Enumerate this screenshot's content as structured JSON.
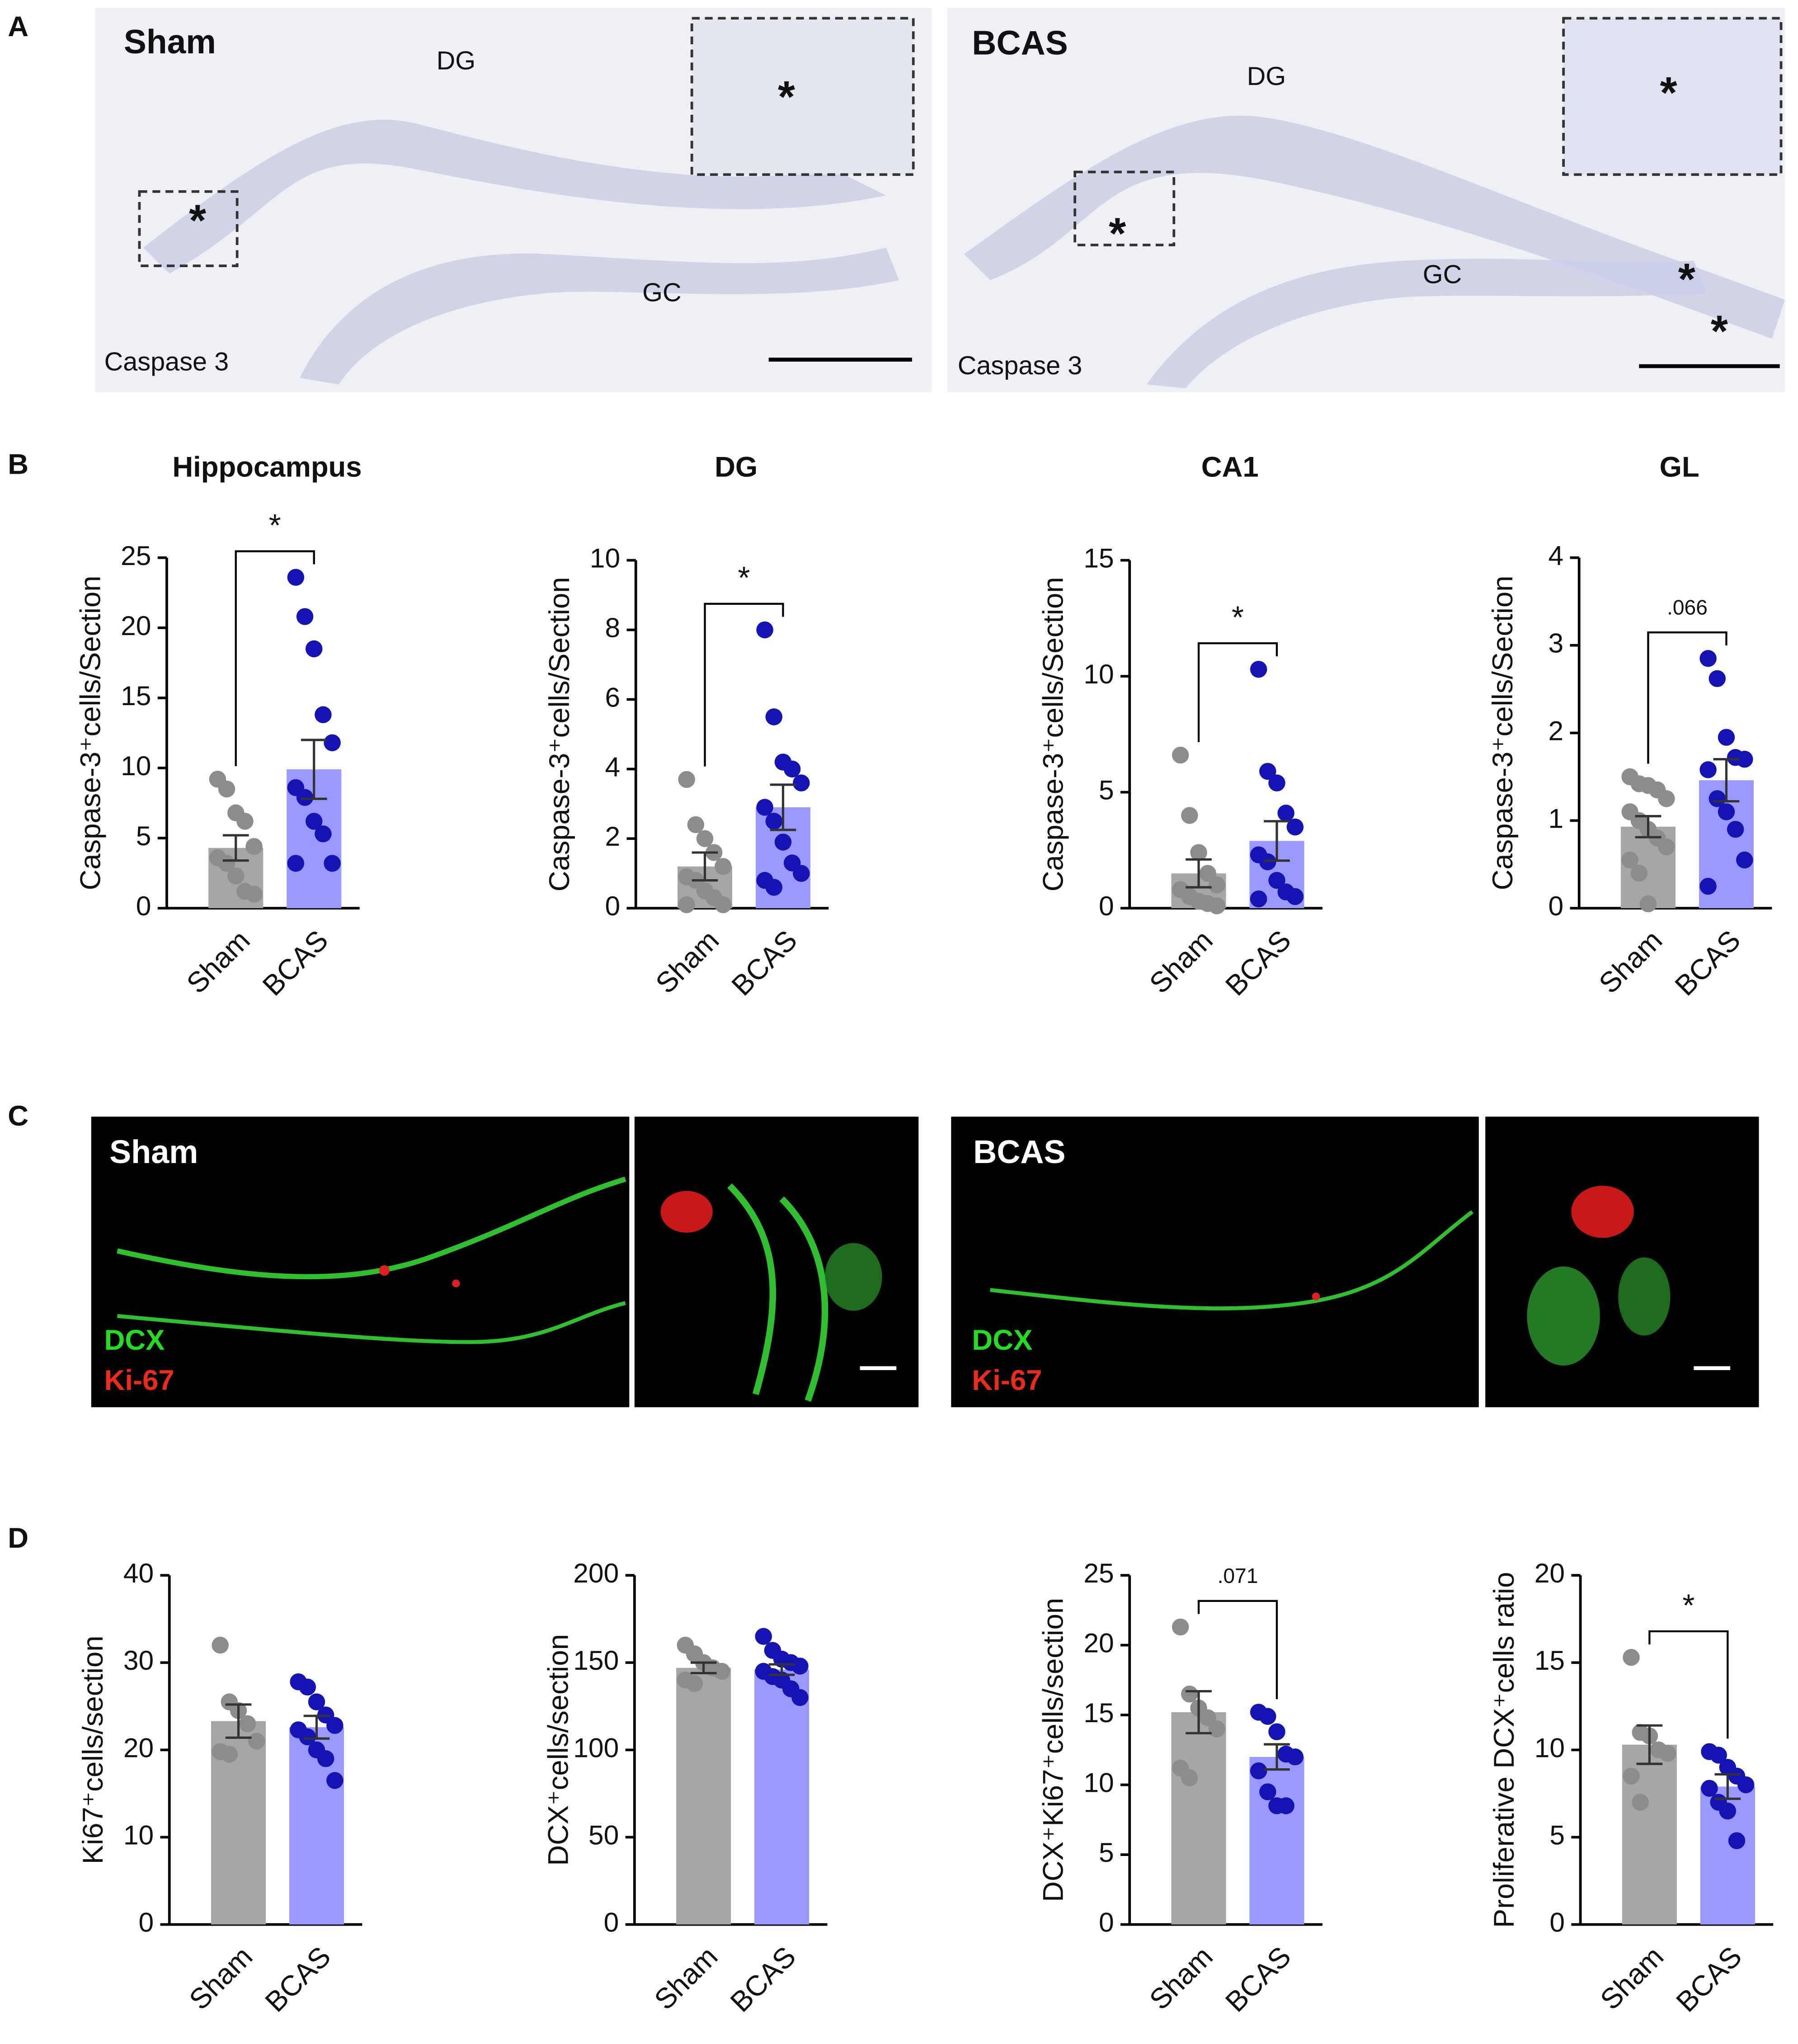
{
  "panels": [
    "A",
    "B",
    "C",
    "D"
  ],
  "micrographs": [
    {
      "group": "Sham",
      "region_labels": [
        "DG",
        "GC"
      ],
      "stain": "Caspase 3",
      "asterisks": [
        "*",
        "*"
      ]
    },
    {
      "group": "BCAS",
      "region_labels": [
        "DG",
        "GC"
      ],
      "stain": "Caspase 3",
      "asterisks": [
        "*",
        "*",
        "*",
        "*"
      ]
    },
    {
      "group": "Sham",
      "stains": [
        "DCX",
        "Ki-67"
      ]
    },
    {
      "group": "BCAS",
      "stains": [
        "DCX",
        "Ki-67"
      ]
    }
  ],
  "chart_data": [
    {
      "type": "bar",
      "title": "Hippocampus",
      "y_label": "Caspase-3⁺cells/Section",
      "categories": [
        "Sham",
        "BCAS"
      ],
      "values": [
        4.3,
        9.9
      ],
      "errors": [
        0.9,
        2.1
      ],
      "colors": [
        "#a6a6a6",
        "#9999ff"
      ],
      "point_colors": [
        "#8c8c8c",
        "#1414b4"
      ],
      "points": [
        [
          9.2,
          8.5,
          6.8,
          6.2,
          4.4,
          3.6,
          3.2,
          2.3,
          1.2,
          1.0
        ],
        [
          23.6,
          20.8,
          18.5,
          13.8,
          11.8,
          8.6,
          7.9,
          6.2,
          5.3,
          3.2,
          3.2
        ]
      ],
      "ylim": [
        0,
        25
      ],
      "yticks": [
        0,
        5,
        10,
        15,
        20,
        25
      ],
      "annotation": "*"
    },
    {
      "type": "bar",
      "title": "DG",
      "y_label": "Caspase-3⁺cells/Section",
      "categories": [
        "Sham",
        "BCAS"
      ],
      "values": [
        1.2,
        2.9
      ],
      "errors": [
        0.4,
        0.65
      ],
      "colors": [
        "#a6a6a6",
        "#9999ff"
      ],
      "point_colors": [
        "#8c8c8c",
        "#1414b4"
      ],
      "points": [
        [
          3.7,
          2.4,
          2.0,
          1.6,
          1.2,
          0.9,
          0.8,
          0.5,
          0.3,
          0.1,
          0.1
        ],
        [
          8.0,
          5.5,
          4.2,
          4.0,
          3.6,
          2.9,
          2.5,
          1.9,
          1.3,
          1.0,
          0.8,
          0.6
        ]
      ],
      "ylim": [
        0,
        10
      ],
      "yticks": [
        0,
        2,
        4,
        6,
        8,
        10
      ],
      "annotation": "*"
    },
    {
      "type": "bar",
      "title": "CA1",
      "y_label": "Caspase-3⁺cells/Section",
      "categories": [
        "Sham",
        "BCAS"
      ],
      "values": [
        1.5,
        2.9
      ],
      "errors": [
        0.6,
        0.85
      ],
      "colors": [
        "#a6a6a6",
        "#9999ff"
      ],
      "point_colors": [
        "#8c8c8c",
        "#1414b4"
      ],
      "points": [
        [
          6.6,
          4.0,
          2.4,
          1.5,
          1.0,
          0.8,
          0.5,
          0.3,
          0.2,
          0.1
        ],
        [
          10.3,
          5.9,
          5.4,
          4.1,
          3.5,
          2.3,
          2.0,
          1.2,
          0.7,
          0.5,
          0.4
        ]
      ],
      "ylim": [
        0,
        15
      ],
      "yticks": [
        0,
        5,
        10,
        15
      ],
      "annotation": "*"
    },
    {
      "type": "bar",
      "title": "GL",
      "y_label": "Caspase-3⁺cells/Section",
      "categories": [
        "Sham",
        "BCAS"
      ],
      "values": [
        0.93,
        1.46
      ],
      "errors": [
        0.12,
        0.24
      ],
      "colors": [
        "#a6a6a6",
        "#9999ff"
      ],
      "point_colors": [
        "#8c8c8c",
        "#1414b4"
      ],
      "points": [
        [
          1.5,
          1.42,
          1.4,
          1.35,
          1.25,
          1.1,
          1.0,
          0.9,
          0.8,
          0.7,
          0.55,
          0.4,
          0.05
        ],
        [
          2.85,
          2.62,
          1.95,
          1.72,
          1.7,
          1.58,
          1.25,
          1.1,
          0.9,
          0.55,
          0.25
        ]
      ],
      "ylim": [
        0,
        4
      ],
      "yticks": [
        0,
        1,
        2,
        3,
        4
      ],
      "annotation": ".066"
    },
    {
      "type": "bar",
      "y_label": "Ki67⁺cells/section",
      "categories": [
        "Sham",
        "BCAS"
      ],
      "values": [
        23.3,
        22.6
      ],
      "errors": [
        1.9,
        1.3
      ],
      "colors": [
        "#a6a6a6",
        "#9999ff"
      ],
      "point_colors": [
        "#8c8c8c",
        "#1414b4"
      ],
      "points": [
        [
          32.0,
          25.5,
          24.5,
          23.0,
          21.0,
          19.8,
          19.5
        ],
        [
          27.8,
          27.2,
          25.5,
          24.0,
          22.8,
          22.3,
          21.5,
          20.0,
          19.0,
          16.5
        ]
      ],
      "ylim": [
        0,
        40
      ],
      "yticks": [
        0,
        10,
        20,
        30,
        40
      ]
    },
    {
      "type": "bar",
      "y_label": "DCX⁺cells/section",
      "categories": [
        "Sham",
        "BCAS"
      ],
      "values": [
        147,
        146
      ],
      "errors": [
        3,
        3
      ],
      "colors": [
        "#a6a6a6",
        "#9999ff"
      ],
      "point_colors": [
        "#8c8c8c",
        "#1414b4"
      ],
      "points": [
        [
          160,
          155,
          150,
          147,
          145,
          140,
          138
        ],
        [
          165,
          157,
          152,
          150,
          148,
          145,
          142,
          140,
          135,
          130
        ]
      ],
      "ylim": [
        0,
        200
      ],
      "yticks": [
        0,
        50,
        100,
        150,
        200
      ]
    },
    {
      "type": "bar",
      "y_label": "DCX⁺Ki67⁺cells/section",
      "categories": [
        "Sham",
        "BCAS"
      ],
      "values": [
        15.2,
        12.0
      ],
      "errors": [
        1.5,
        0.9
      ],
      "colors": [
        "#a6a6a6",
        "#9999ff"
      ],
      "point_colors": [
        "#8c8c8c",
        "#1414b4"
      ],
      "points": [
        [
          21.3,
          16.5,
          15.5,
          14.8,
          14.0,
          11.2,
          10.5
        ],
        [
          15.2,
          14.9,
          13.8,
          12.2,
          12.0,
          11.0,
          9.5,
          8.5,
          8.5
        ]
      ],
      "ylim": [
        0,
        25
      ],
      "yticks": [
        0,
        5,
        10,
        15,
        20,
        25
      ],
      "annotation": ".071"
    },
    {
      "type": "bar",
      "y_label": "Proliferative DCX⁺cells ratio",
      "categories": [
        "Sham",
        "BCAS"
      ],
      "values": [
        10.3,
        7.9
      ],
      "errors": [
        1.1,
        0.7
      ],
      "colors": [
        "#a6a6a6",
        "#9999ff"
      ],
      "point_colors": [
        "#8c8c8c",
        "#1414b4"
      ],
      "points": [
        [
          15.3,
          11.0,
          10.8,
          10.0,
          9.8,
          8.5,
          7.0
        ],
        [
          9.9,
          9.7,
          9.0,
          8.5,
          8.0,
          7.8,
          7.0,
          6.5,
          4.8
        ]
      ],
      "ylim": [
        0,
        20
      ],
      "yticks": [
        0,
        5,
        10,
        15,
        20
      ],
      "annotation": "*"
    }
  ]
}
